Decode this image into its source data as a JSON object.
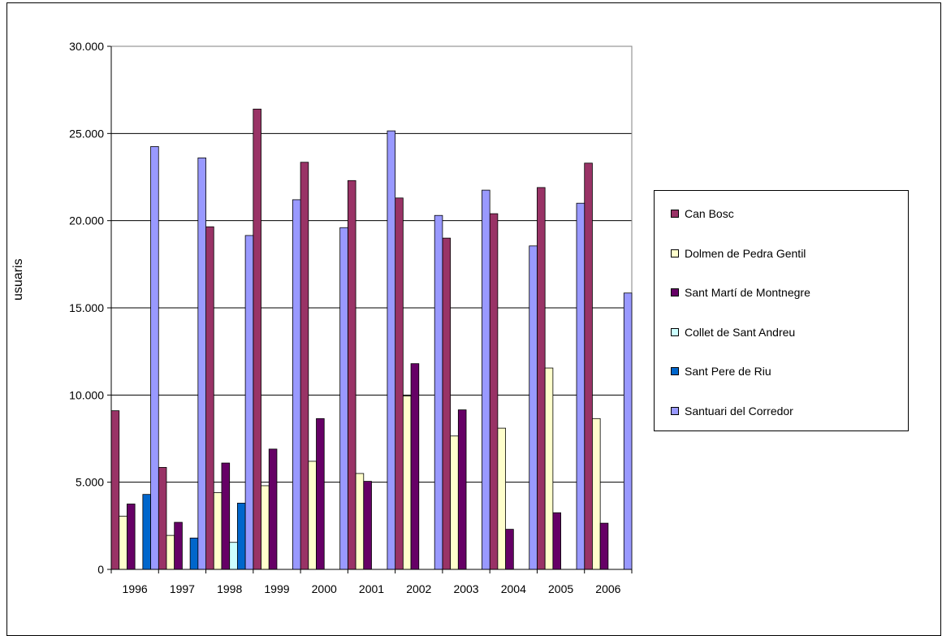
{
  "chart_data": {
    "type": "bar",
    "ylabel": "usuaris",
    "categories": [
      "1996",
      "1997",
      "1998",
      "1999",
      "2000",
      "2001",
      "2002",
      "2003",
      "2004",
      "2005",
      "2006"
    ],
    "ylim": [
      0,
      30000
    ],
    "yticks": [
      0,
      5000,
      10000,
      15000,
      20000,
      25000,
      30000
    ],
    "ytick_labels": [
      "0",
      "5.000",
      "10.000",
      "15.000",
      "20.000",
      "25.000",
      "30.000"
    ],
    "grid": true,
    "legend_position": "right",
    "series": [
      {
        "name": "Can Bosc",
        "color": "#993366",
        "values": [
          9100,
          5850,
          19650,
          26400,
          23350,
          22300,
          21300,
          19000,
          20400,
          21900,
          23300
        ]
      },
      {
        "name": "Dolmen de Pedra Gentil",
        "color": "#FFFFCC",
        "values": [
          3050,
          1950,
          4400,
          4800,
          6200,
          5500,
          9950,
          7650,
          8100,
          11550,
          8650
        ]
      },
      {
        "name": "Sant Martí de Montnegre",
        "color": "#660066",
        "values": [
          3750,
          2700,
          6100,
          6900,
          8650,
          5050,
          11800,
          9150,
          2300,
          3250,
          2650
        ]
      },
      {
        "name": "Collet de Sant Andreu",
        "color": "#CCFFFF",
        "values": [
          0,
          0,
          1550,
          0,
          0,
          0,
          0,
          0,
          0,
          0,
          0
        ]
      },
      {
        "name": "Sant Pere de Riu",
        "color": "#0066CC",
        "values": [
          4300,
          1800,
          3800,
          0,
          0,
          0,
          0,
          0,
          0,
          0,
          0
        ]
      },
      {
        "name": "Santuari del Corredor",
        "color": "#9999FF",
        "values": [
          24250,
          23600,
          19150,
          21200,
          19600,
          25150,
          20300,
          21750,
          18550,
          21000,
          15850
        ]
      }
    ]
  }
}
